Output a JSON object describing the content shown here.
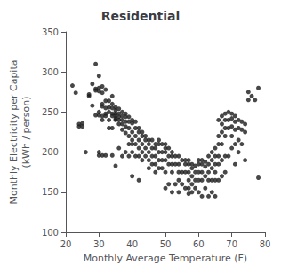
{
  "chart_data": {
    "type": "scatter",
    "title": "Residential",
    "xlabel": "Monthly Average Temperature (F)",
    "ylabel": "Monthly Electricity per Capita\n(kWh / person)",
    "xlim": [
      20,
      80
    ],
    "ylim": [
      100,
      350
    ],
    "xticks": [
      20,
      30,
      40,
      50,
      60,
      70,
      80
    ],
    "yticks": [
      100,
      150,
      200,
      250,
      300,
      350
    ],
    "marker": "circle",
    "color": "#1a1a1a",
    "grid": false,
    "x": [
      22,
      23,
      24,
      24,
      25,
      25,
      26,
      27,
      27,
      28,
      28,
      29,
      29,
      29,
      29,
      30,
      30,
      30,
      30,
      30,
      30,
      30,
      31,
      31,
      31,
      31,
      31,
      31,
      31,
      32,
      32,
      32,
      32,
      32,
      32,
      33,
      33,
      33,
      33,
      33,
      34,
      34,
      34,
      34,
      34,
      34,
      34,
      35,
      35,
      35,
      35,
      35,
      35,
      35,
      36,
      36,
      36,
      36,
      36,
      36,
      37,
      37,
      37,
      37,
      37,
      37,
      38,
      38,
      38,
      38,
      38,
      38,
      39,
      39,
      39,
      39,
      39,
      39,
      40,
      40,
      40,
      40,
      40,
      40,
      40,
      41,
      41,
      41,
      41,
      41,
      42,
      42,
      42,
      42,
      42,
      42,
      43,
      43,
      43,
      43,
      43,
      44,
      44,
      44,
      44,
      45,
      45,
      45,
      45,
      45,
      46,
      46,
      46,
      46,
      47,
      47,
      47,
      47,
      47,
      48,
      48,
      48,
      48,
      48,
      49,
      49,
      49,
      49,
      50,
      50,
      50,
      50,
      50,
      50,
      51,
      51,
      51,
      51,
      52,
      52,
      52,
      52,
      52,
      53,
      53,
      53,
      54,
      54,
      54,
      54,
      54,
      55,
      55,
      55,
      56,
      56,
      56,
      56,
      57,
      57,
      57,
      57,
      57,
      57,
      58,
      58,
      58,
      58,
      58,
      59,
      59,
      59,
      59,
      60,
      60,
      60,
      60,
      60,
      61,
      61,
      61,
      61,
      61,
      62,
      62,
      62,
      62,
      63,
      63,
      63,
      63,
      63,
      64,
      64,
      64,
      64,
      64,
      65,
      65,
      65,
      65,
      65,
      65,
      66,
      66,
      66,
      66,
      66,
      66,
      67,
      67,
      67,
      67,
      67,
      67,
      68,
      68,
      68,
      68,
      68,
      68,
      69,
      69,
      69,
      69,
      70,
      70,
      70,
      70,
      70,
      71,
      71,
      71,
      71,
      71,
      72,
      72,
      72,
      72,
      73,
      73,
      73,
      74,
      74,
      74,
      75,
      75,
      76,
      77,
      78,
      78
    ],
    "y": [
      283,
      274,
      232,
      235,
      232,
      236,
      200,
      270,
      272,
      285,
      258,
      310,
      279,
      277,
      246,
      295,
      280,
      276,
      250,
      246,
      200,
      196,
      282,
      274,
      260,
      257,
      245,
      240,
      196,
      278,
      264,
      255,
      248,
      245,
      196,
      264,
      256,
      250,
      240,
      230,
      270,
      260,
      255,
      248,
      245,
      230,
      196,
      256,
      252,
      248,
      245,
      242,
      240,
      183,
      254,
      248,
      244,
      240,
      235,
      205,
      250,
      245,
      240,
      235,
      228,
      195,
      248,
      244,
      238,
      232,
      224,
      200,
      244,
      238,
      230,
      220,
      210,
      195,
      240,
      236,
      225,
      215,
      210,
      200,
      170,
      238,
      230,
      220,
      210,
      195,
      230,
      225,
      215,
      205,
      195,
      165,
      225,
      220,
      210,
      200,
      190,
      220,
      215,
      205,
      195,
      215,
      210,
      200,
      190,
      180,
      215,
      205,
      195,
      185,
      210,
      205,
      195,
      185,
      175,
      215,
      210,
      200,
      190,
      180,
      210,
      200,
      190,
      180,
      210,
      205,
      200,
      190,
      175,
      155,
      205,
      195,
      185,
      160,
      200,
      195,
      185,
      175,
      150,
      195,
      185,
      160,
      195,
      185,
      175,
      165,
      150,
      190,
      175,
      160,
      190,
      185,
      175,
      155,
      190,
      185,
      175,
      165,
      155,
      148,
      185,
      180,
      170,
      160,
      150,
      183,
      175,
      165,
      155,
      190,
      185,
      175,
      165,
      150,
      190,
      185,
      175,
      165,
      145,
      188,
      182,
      170,
      155,
      195,
      185,
      175,
      165,
      145,
      200,
      190,
      180,
      165,
      150,
      205,
      195,
      185,
      175,
      165,
      145,
      240,
      220,
      210,
      195,
      185,
      165,
      245,
      235,
      225,
      210,
      190,
      170,
      248,
      240,
      230,
      220,
      195,
      175,
      250,
      240,
      230,
      195,
      248,
      242,
      232,
      220,
      205,
      245,
      238,
      228,
      210,
      185,
      240,
      230,
      215,
      200,
      238,
      228,
      210,
      235,
      225,
      190,
      275,
      265,
      270,
      265,
      280,
      168
    ]
  }
}
